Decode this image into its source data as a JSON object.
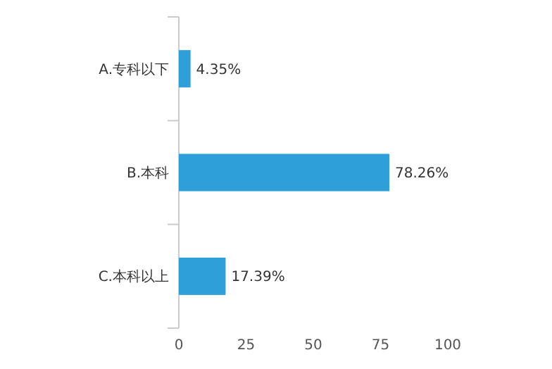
{
  "chart_data": {
    "type": "bar",
    "orientation": "horizontal",
    "categories": [
      "A.专科以下",
      "B.本科",
      "C.本科以上"
    ],
    "values": [
      4.35,
      78.26,
      17.39
    ],
    "value_labels": [
      "4.35%",
      "78.26%",
      "17.39%"
    ],
    "color": "#2e9fd9",
    "xlim": [
      0,
      100
    ],
    "xticks": [
      0,
      25,
      50,
      75,
      100
    ],
    "grid": false
  }
}
